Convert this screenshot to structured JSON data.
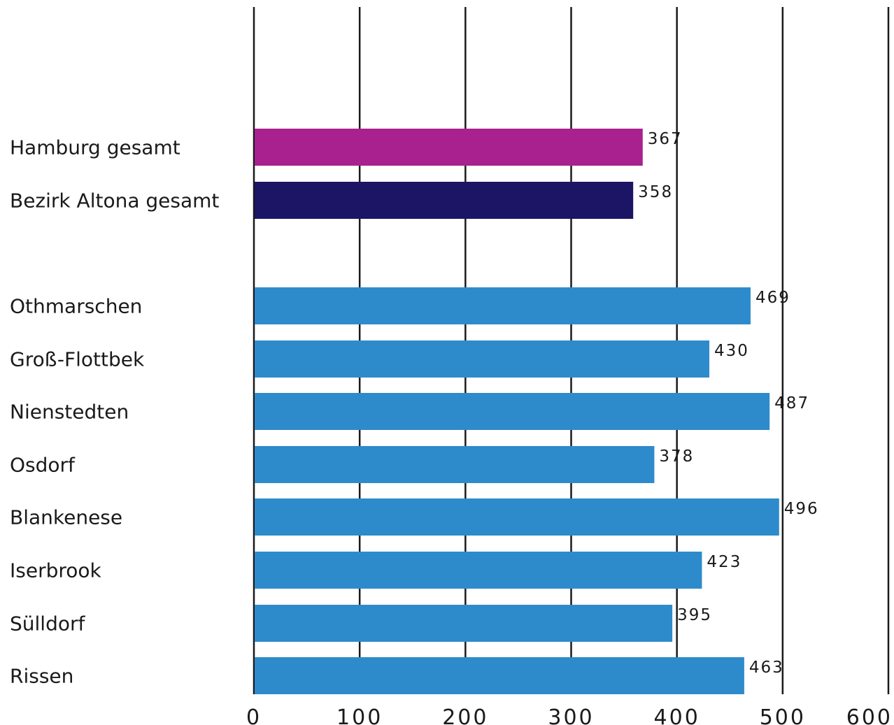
{
  "chart_data": {
    "type": "bar",
    "orientation": "horizontal",
    "categories": [
      "Hamburg gesamt",
      "Bezirk Altona gesamt",
      "Othmarschen",
      "Groß-Flottbek",
      "Nienstedten",
      "Osdorf",
      "Blankenese",
      "Iserbrook",
      "Sülldorf",
      "Rissen"
    ],
    "values": [
      367,
      358,
      469,
      430,
      487,
      378,
      496,
      423,
      395,
      463
    ],
    "bar_colors": [
      "#a8218e",
      "#1c1464",
      "#2e8bcb",
      "#2e8bcb",
      "#2e8bcb",
      "#2e8bcb",
      "#2e8bcb",
      "#2e8bcb",
      "#2e8bcb",
      "#2e8bcb"
    ],
    "xlim": [
      0,
      600
    ],
    "xticks": [
      0,
      100,
      200,
      300,
      400,
      500,
      600
    ],
    "grid": true,
    "title": "",
    "xlabel": "",
    "ylabel": ""
  }
}
